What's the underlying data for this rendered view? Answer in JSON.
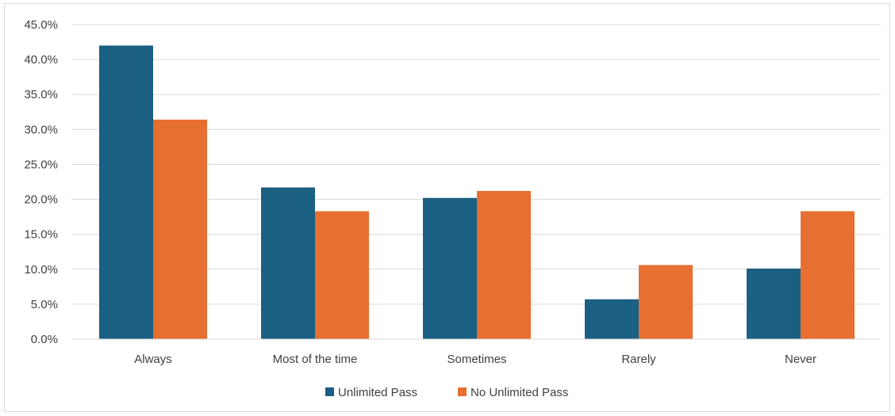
{
  "chart_data": {
    "type": "bar",
    "categories": [
      "Always",
      "Most of the time",
      "Sometimes",
      "Rarely",
      "Never"
    ],
    "series": [
      {
        "name": "Unlimited Pass",
        "color": "#1b5f82",
        "values": [
          42.0,
          21.7,
          20.2,
          5.7,
          10.1
        ]
      },
      {
        "name": "No Unlimited Pass",
        "color": "#e76f31",
        "values": [
          31.4,
          18.3,
          21.2,
          10.6,
          18.3
        ]
      }
    ],
    "ylim": [
      0,
      45
    ],
    "y_ticks": [
      0,
      5,
      10,
      15,
      20,
      25,
      30,
      35,
      40,
      45
    ],
    "y_tick_format": "percent_1dp",
    "grid": true,
    "legend_position": "bottom",
    "title": "",
    "xlabel": "",
    "ylabel": ""
  }
}
